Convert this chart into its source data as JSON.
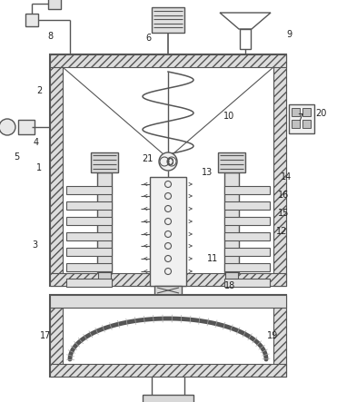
{
  "fig_w": 3.71,
  "fig_h": 4.43,
  "dpi": 100,
  "bg": "#ffffff",
  "lc": "#555555",
  "lw": 1.0,
  "fs": 7.0
}
